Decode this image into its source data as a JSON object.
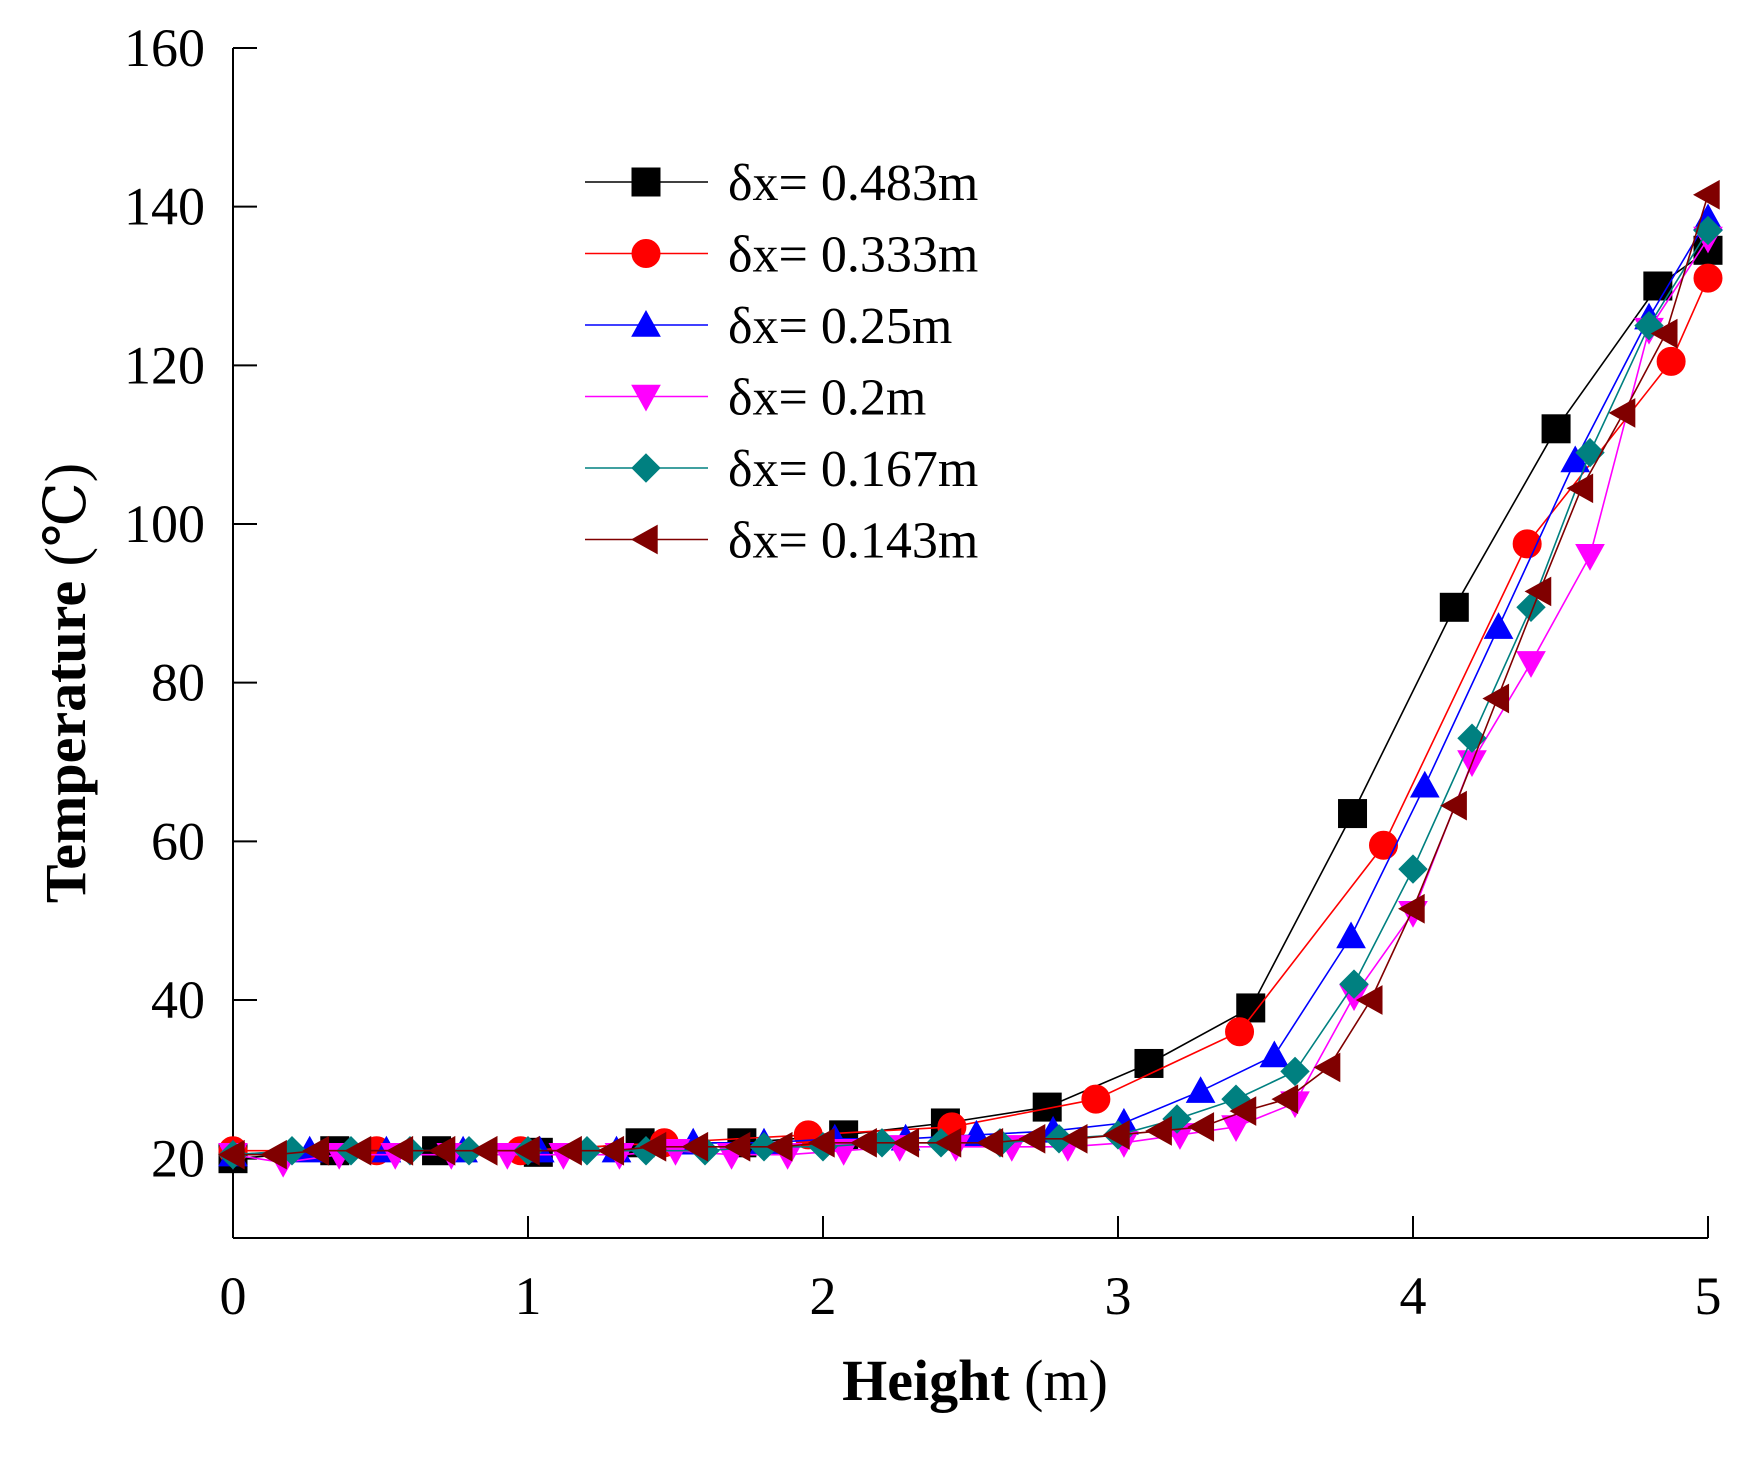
{
  "chart_data": {
    "type": "line",
    "title": "",
    "xlabel": {
      "bold": "Height",
      "normal": " (m)"
    },
    "ylabel": {
      "bold": "Temperature",
      "normal": " (℃)"
    },
    "xlim": [
      0,
      5
    ],
    "ylim": [
      10,
      160
    ],
    "xticks": [
      "0",
      "1",
      "2",
      "3",
      "4",
      "5"
    ],
    "yticks": [
      "20",
      "40",
      "60",
      "80",
      "100",
      "120",
      "140",
      "160"
    ],
    "legend_position": "top-center",
    "grid": false,
    "series": [
      {
        "name": "δx= 0.483m",
        "color": "#000000",
        "marker": "square",
        "x": [
          0,
          0.345,
          0.69,
          1.035,
          1.38,
          1.725,
          2.07,
          2.415,
          2.76,
          3.105,
          3.45,
          3.795,
          4.14,
          4.485,
          4.83,
          5.0
        ],
        "y": [
          20,
          21,
          21,
          20.8,
          22,
          22,
          23,
          24.5,
          26.5,
          32,
          39,
          63.5,
          89.5,
          112,
          130,
          134.5
        ]
      },
      {
        "name": "δx= 0.333m",
        "color": "#ff0000",
        "marker": "circle",
        "x": [
          0,
          0.487,
          0.975,
          1.462,
          1.95,
          2.437,
          2.925,
          3.412,
          3.9,
          4.387,
          4.875,
          5.0
        ],
        "y": [
          21,
          21,
          21,
          22,
          23,
          24,
          27.5,
          36,
          59.5,
          97.5,
          120.5,
          131
        ]
      },
      {
        "name": "δx= 0.25m",
        "color": "#0000ff",
        "marker": "triangle-up",
        "x": [
          0,
          0.26,
          0.52,
          0.78,
          1.04,
          1.3,
          1.56,
          1.8,
          2.04,
          2.28,
          2.52,
          2.78,
          3.02,
          3.28,
          3.53,
          3.79,
          4.04,
          4.29,
          4.55,
          4.8,
          5.0
        ],
        "y": [
          20.5,
          21,
          21,
          21,
          21,
          21,
          22,
          22,
          22.5,
          22.5,
          23,
          23.5,
          24.5,
          28.5,
          33,
          48,
          67,
          87,
          108,
          126,
          138.5
        ]
      },
      {
        "name": "δx= 0.2m",
        "color": "#ff00ff",
        "marker": "triangle-down",
        "x": [
          0,
          0.17,
          0.36,
          0.55,
          0.74,
          0.93,
          1.12,
          1.31,
          1.5,
          1.69,
          1.88,
          2.07,
          2.26,
          2.45,
          2.64,
          2.83,
          3.02,
          3.21,
          3.4,
          3.6,
          3.8,
          4.0,
          4.2,
          4.4,
          4.6,
          4.8,
          5.0
        ],
        "y": [
          20.5,
          19.5,
          20.5,
          20.5,
          20.5,
          20.5,
          20.5,
          20.5,
          21,
          20.5,
          20.5,
          21,
          21.5,
          21.5,
          21.5,
          21.5,
          22,
          23,
          24,
          27,
          40.5,
          51,
          70,
          82.5,
          96,
          124.5,
          136
        ]
      },
      {
        "name": "δx= 0.167m",
        "color": "#008080",
        "marker": "diamond",
        "x": [
          0,
          0.2,
          0.4,
          0.6,
          0.8,
          1.0,
          1.2,
          1.4,
          1.6,
          1.8,
          2.0,
          2.2,
          2.4,
          2.6,
          2.8,
          3.0,
          3.2,
          3.4,
          3.6,
          3.8,
          4.0,
          4.2,
          4.4,
          4.6,
          4.8,
          5.0
        ],
        "y": [
          20.5,
          21,
          21,
          21,
          21,
          21,
          21,
          21,
          21,
          21.5,
          21.5,
          22,
          22,
          22,
          22.5,
          23,
          25,
          27.5,
          31,
          42,
          56.5,
          73,
          89.5,
          109,
          125,
          137
        ]
      },
      {
        "name": "δx= 0.143m",
        "color": "#800000",
        "marker": "triangle-left",
        "x": [
          0,
          0.143,
          0.286,
          0.429,
          0.571,
          0.714,
          0.857,
          1.0,
          1.143,
          1.286,
          1.429,
          1.571,
          1.714,
          1.857,
          2.0,
          2.143,
          2.286,
          2.429,
          2.571,
          2.714,
          2.857,
          3.0,
          3.143,
          3.286,
          3.429,
          3.571,
          3.714,
          3.857,
          4.0,
          4.143,
          4.286,
          4.429,
          4.571,
          4.714,
          4.857,
          5.0
        ],
        "y": [
          20.5,
          20.5,
          21,
          21,
          21,
          21,
          21,
          21,
          21,
          21,
          21.5,
          21.5,
          21.5,
          21.5,
          22,
          22,
          22,
          22,
          22,
          22.5,
          22.5,
          23,
          23.5,
          24,
          26,
          27.5,
          31.5,
          40,
          51.5,
          64.5,
          78,
          91.5,
          104.5,
          114,
          124,
          141.5
        ]
      }
    ]
  }
}
